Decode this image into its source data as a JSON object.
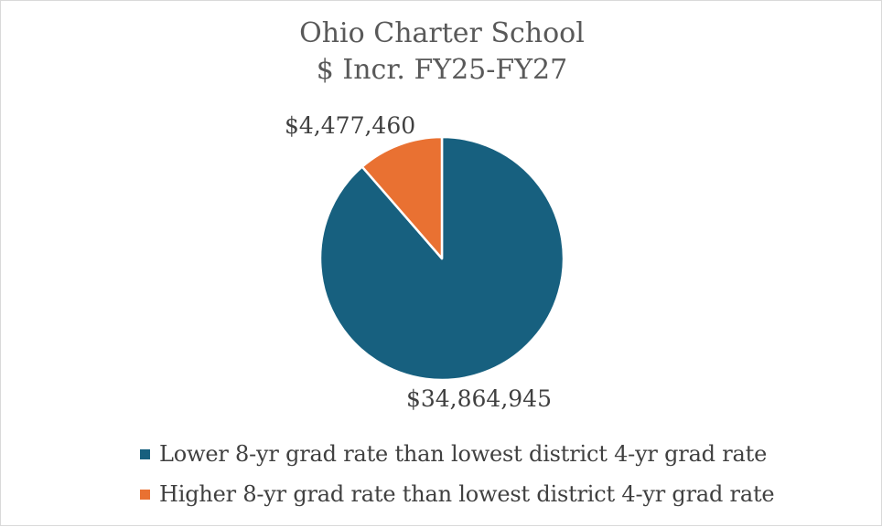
{
  "chart_data": {
    "type": "pie",
    "title": "Ohio Charter School",
    "subtitle": "$ Incr. FY25-FY27",
    "slices": [
      {
        "label": "Lower 8-yr grad rate than lowest district 4-yr grad rate",
        "value": 34864945,
        "display": "$34,864,945",
        "color": "#17607f"
      },
      {
        "label": "Higher 8-yr grad rate than lowest district 4-yr grad rate",
        "value": 4477460,
        "display": "$4,477,460",
        "color": "#e97132"
      }
    ],
    "legend_position": "bottom"
  }
}
